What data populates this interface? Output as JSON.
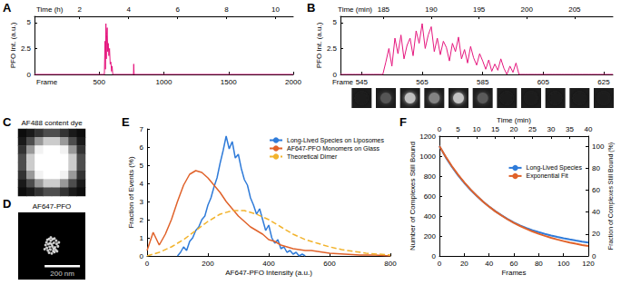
{
  "chart_data": [
    {
      "panel": "A",
      "type": "line",
      "color": "#e5177e",
      "grid": false,
      "xlabel": "Frame",
      "ylabel": "PFO Int. (a.u.)",
      "x2label": "Time (h)",
      "x": [
        0,
        540,
        545,
        548,
        552,
        555,
        558,
        562,
        566,
        570,
        575,
        580,
        585,
        590,
        596,
        600,
        605,
        765,
        767,
        770,
        2000
      ],
      "values": [
        0,
        0,
        3.2,
        0.5,
        4.9,
        1.5,
        3.8,
        4.5,
        2.2,
        3.0,
        1.8,
        2.5,
        1.0,
        1.2,
        0.3,
        0.8,
        0,
        0,
        1.0,
        0,
        0
      ],
      "xlim": [
        0,
        2000
      ],
      "xticks": [
        500,
        1000,
        1500,
        2000
      ],
      "x2lim": [
        0.16,
        10.72
      ],
      "x2ticks": [
        2,
        4,
        6,
        8,
        10
      ],
      "ylim": [
        0,
        5.6
      ],
      "yticks": [
        0,
        2.5,
        5
      ]
    },
    {
      "panel": "B",
      "type": "line",
      "color": "#e5177e",
      "grid": false,
      "xlabel": "Frame",
      "ylabel": "PFO Int. (a.u.)",
      "x2label": "Time (min)",
      "x": [
        538,
        539,
        540,
        541,
        542,
        543,
        544,
        545,
        546,
        547,
        548,
        549,
        550,
        551,
        552,
        553,
        554,
        555,
        556,
        557,
        558,
        559,
        560,
        561,
        562,
        563,
        564,
        565,
        566,
        567,
        568,
        569,
        570,
        571,
        572,
        573,
        574,
        575,
        576,
        577,
        578,
        579,
        580,
        581,
        582,
        583,
        584,
        585,
        586,
        587,
        588,
        589,
        590,
        591,
        592,
        593,
        594,
        595,
        596,
        597,
        598,
        599,
        600,
        601,
        602,
        603,
        604,
        605,
        606,
        607,
        608,
        609,
        610,
        611,
        612,
        613,
        614,
        615,
        616,
        617,
        618,
        619,
        620,
        621,
        622,
        623,
        624,
        625,
        626,
        627,
        628
      ],
      "values": [
        0,
        0,
        0,
        0,
        0,
        0,
        0,
        0,
        0,
        0,
        0,
        0,
        0,
        0,
        0,
        1.2,
        2.5,
        0.8,
        3.5,
        2.0,
        3.8,
        1.5,
        2.8,
        3.5,
        1.8,
        4.2,
        3.0,
        4.9,
        2.5,
        3.8,
        4.6,
        2.2,
        3.5,
        1.9,
        3.2,
        2.6,
        1.3,
        3.0,
        2.2,
        3.6,
        1.5,
        2.4,
        1.1,
        2.7,
        1.6,
        0.9,
        2.0,
        1.3,
        0.5,
        1.4,
        0.3,
        1.0,
        0.4,
        1.5,
        0.6,
        0,
        0.8,
        0.2,
        1.1,
        0,
        0,
        0,
        0,
        0,
        0,
        0,
        0,
        0,
        0,
        0,
        0,
        0,
        0,
        0,
        0,
        0,
        0,
        0,
        0,
        0,
        0,
        0,
        0,
        0,
        0,
        0,
        0,
        0,
        0,
        0,
        0
      ],
      "xlim": [
        538,
        628
      ],
      "xticks": [
        545,
        565,
        585,
        605,
        625
      ],
      "x2lim": [
        180.5,
        209.0
      ],
      "x2ticks": [
        185,
        190,
        195,
        200,
        205
      ],
      "ylim": [
        0,
        5.6
      ],
      "yticks": [
        0,
        2.5,
        5
      ]
    },
    {
      "panel": "C",
      "type": "heatmap",
      "title": "AF488 content dye",
      "tick_labels": false,
      "cells": [
        [
          0.05,
          0.1,
          0.2,
          0.3,
          0.3,
          0.2,
          0.1,
          0.05
        ],
        [
          0.1,
          0.3,
          0.6,
          0.8,
          0.8,
          0.6,
          0.3,
          0.1
        ],
        [
          0.2,
          0.6,
          0.95,
          1,
          1,
          0.95,
          0.6,
          0.2
        ],
        [
          0.3,
          0.8,
          1,
          1,
          1,
          1,
          0.8,
          0.3
        ],
        [
          0.3,
          0.8,
          1,
          1,
          1,
          1,
          0.8,
          0.3
        ],
        [
          0.2,
          0.6,
          0.95,
          1,
          1,
          0.95,
          0.6,
          0.2
        ],
        [
          0.1,
          0.3,
          0.6,
          0.8,
          0.8,
          0.6,
          0.3,
          0.1
        ],
        [
          0.05,
          0.1,
          0.2,
          0.3,
          0.3,
          0.2,
          0.1,
          0.05
        ]
      ],
      "value_range": [
        0,
        1
      ]
    },
    {
      "panel": "D",
      "type": "scatter",
      "title": "AF647-PFO",
      "tick_labels": false,
      "color": "#ffffff",
      "marker": "circle",
      "x": [
        -30,
        -25,
        -15,
        -5,
        5,
        15,
        25,
        -35,
        -20,
        -10,
        0,
        12,
        28,
        35,
        -28,
        -12,
        3,
        18,
        -22,
        -8,
        8,
        22,
        -15,
        0,
        15,
        -40,
        40,
        30,
        -5,
        10
      ],
      "values": [
        20,
        35,
        40,
        30,
        38,
        42,
        30,
        5,
        10,
        15,
        10,
        18,
        12,
        -2,
        -10,
        -5,
        -2,
        -8,
        -25,
        -20,
        -28,
        -22,
        -38,
        -42,
        -35,
        -18,
        20,
        -30,
        48,
        -15
      ],
      "xlim": [
        -190,
        190
      ],
      "ylim": [
        -190,
        190
      ],
      "scale_bar": {
        "value": 200,
        "label": "200 nm"
      }
    },
    {
      "panel": "E",
      "type": "line",
      "grid": false,
      "legend": "upper right",
      "xlabel": "AF647-PFO Intensity (a.u.)",
      "ylabel": "Fraction of Events (%)",
      "xlim": [
        0,
        800
      ],
      "xticks": [
        0,
        200,
        400,
        600,
        800
      ],
      "ylim": [
        0,
        7
      ],
      "yticks": [
        0,
        1,
        2,
        3,
        4,
        5,
        6,
        7
      ],
      "series": [
        {
          "name": "Long-Lived Species on Liposomes",
          "color": "#2f7bd9",
          "line_style": "solid",
          "x": [
            100,
            110,
            120,
            130,
            140,
            150,
            160,
            170,
            180,
            190,
            200,
            210,
            220,
            230,
            240,
            250,
            260,
            270,
            280,
            290,
            300,
            310,
            320,
            330,
            340,
            350,
            360,
            370,
            380,
            390,
            400,
            410,
            420,
            430,
            440,
            450,
            460,
            470,
            480,
            490,
            500,
            510,
            520
          ],
          "values": [
            0,
            0.2,
            0.5,
            0.3,
            0.8,
            1.0,
            1.4,
            1.6,
            2.0,
            2.2,
            2.8,
            3.2,
            3.8,
            4.3,
            5.1,
            5.8,
            6.6,
            5.9,
            6.3,
            5.4,
            5.6,
            4.8,
            4.2,
            3.9,
            3.2,
            2.8,
            2.3,
            2.6,
            2.0,
            1.4,
            1.7,
            1.0,
            0.7,
            0.9,
            0.4,
            0.5,
            0.2,
            0.3,
            0.1,
            0.2,
            0,
            0.1,
            0
          ]
        },
        {
          "name": "AF647-PFO Monomers on Glass",
          "color": "#e0622a",
          "line_style": "solid",
          "x": [
            0,
            20,
            40,
            60,
            80,
            100,
            120,
            140,
            160,
            180,
            200,
            220,
            240,
            260,
            280,
            300,
            320,
            340,
            360,
            380,
            400,
            420,
            440,
            460,
            480,
            500,
            520,
            540,
            560,
            580,
            600,
            650,
            700,
            750,
            800
          ],
          "values": [
            0.3,
            1.3,
            0.6,
            1.2,
            2.0,
            3.0,
            3.9,
            4.5,
            4.7,
            4.6,
            4.3,
            3.9,
            3.5,
            3.0,
            2.6,
            2.2,
            1.9,
            1.6,
            1.4,
            1.2,
            0.9,
            0.8,
            0.6,
            0.5,
            0.4,
            0.35,
            0.3,
            0.3,
            0.25,
            0.2,
            0.15,
            0.1,
            0.05,
            0.05,
            0
          ]
        },
        {
          "name": "Theoretical Dimer",
          "color": "#f2b32c",
          "line_style": "dashed",
          "x": [
            0,
            40,
            80,
            120,
            160,
            200,
            240,
            280,
            320,
            360,
            400,
            440,
            480,
            520,
            560,
            600,
            640,
            680,
            720,
            760,
            800
          ],
          "values": [
            0,
            0.2,
            0.5,
            0.9,
            1.4,
            1.9,
            2.3,
            2.5,
            2.5,
            2.3,
            2.0,
            1.6,
            1.2,
            0.9,
            0.7,
            0.5,
            0.35,
            0.25,
            0.15,
            0.1,
            0.05
          ]
        }
      ]
    },
    {
      "panel": "F",
      "type": "line",
      "grid": false,
      "legend": "right",
      "xlabel": "Frames",
      "ylabel": "Number of Complexes Still Bound",
      "x2label": "Time (min)",
      "y2label": "Fraction of Complexes Still Bound (%)",
      "xlim": [
        0,
        120
      ],
      "xticks": [
        0,
        20,
        40,
        60,
        80,
        100,
        120
      ],
      "ylim": [
        0,
        1200
      ],
      "yticks": [
        0,
        200,
        400,
        600,
        800,
        1000,
        1200
      ],
      "x2lim": [
        0,
        40
      ],
      "x2ticks": [
        0,
        5,
        10,
        15,
        20,
        25,
        30,
        35,
        40
      ],
      "y2lim": [
        0,
        109.1
      ],
      "y2ticks": [
        0,
        20,
        40,
        60,
        80,
        100
      ],
      "series": [
        {
          "name": "Long-Lived Species",
          "color": "#2f7bd9",
          "line_style": "solid",
          "x": [
            0,
            5,
            10,
            15,
            20,
            25,
            30,
            35,
            40,
            45,
            50,
            55,
            60,
            65,
            70,
            75,
            80,
            85,
            90,
            95,
            100,
            105,
            110,
            115,
            120
          ],
          "values": [
            1100,
            990,
            893,
            808,
            732,
            664,
            602,
            546,
            495,
            449,
            408,
            370,
            336,
            306,
            280,
            258,
            238,
            220,
            204,
            190,
            177,
            165,
            154,
            144,
            135
          ]
        },
        {
          "name": "Exponential Fit",
          "color": "#e0622a",
          "line_style": "solid",
          "x": [
            0,
            5,
            10,
            15,
            20,
            25,
            30,
            35,
            40,
            45,
            50,
            55,
            60,
            65,
            70,
            75,
            80,
            85,
            90,
            95,
            100,
            105,
            110,
            115,
            120
          ],
          "values": [
            1100,
            995,
            900,
            815,
            737,
            667,
            604,
            546,
            494,
            447,
            405,
            366,
            331,
            300,
            271,
            245,
            222,
            201,
            182,
            165,
            149,
            135,
            122,
            110,
            100
          ]
        }
      ]
    }
  ]
}
